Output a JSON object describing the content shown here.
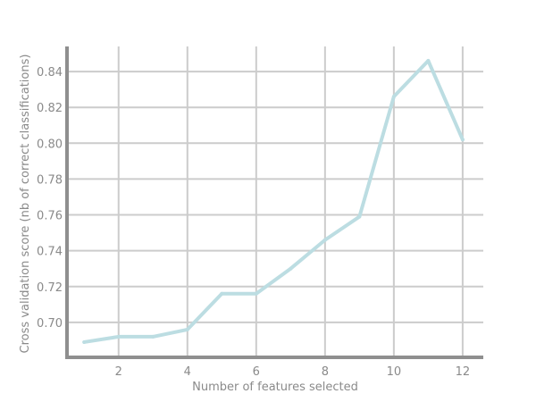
{
  "chart_data": {
    "type": "line",
    "xlabel": "Number of features selected",
    "ylabel": "Cross validation score (nb of correct classifications)",
    "xlim": [
      0.5,
      12.6
    ],
    "ylim": [
      0.6805,
      0.854
    ],
    "x_ticks": [
      2,
      4,
      6,
      8,
      10,
      12
    ],
    "y_ticks": [
      0.7,
      0.72,
      0.74,
      0.76,
      0.78,
      0.8,
      0.82,
      0.84
    ],
    "grid": true,
    "colors": {
      "line": "#bcdde2",
      "grid": "#cccccc",
      "axis": "#8f8f8f",
      "text": "#8a8a8a"
    },
    "series": [
      {
        "x": [
          1,
          2,
          3,
          4,
          5,
          6,
          7,
          8,
          9,
          10,
          11,
          12
        ],
        "values": [
          0.689,
          0.692,
          0.692,
          0.696,
          0.716,
          0.716,
          0.73,
          0.746,
          0.759,
          0.826,
          0.846,
          0.802
        ]
      }
    ]
  }
}
